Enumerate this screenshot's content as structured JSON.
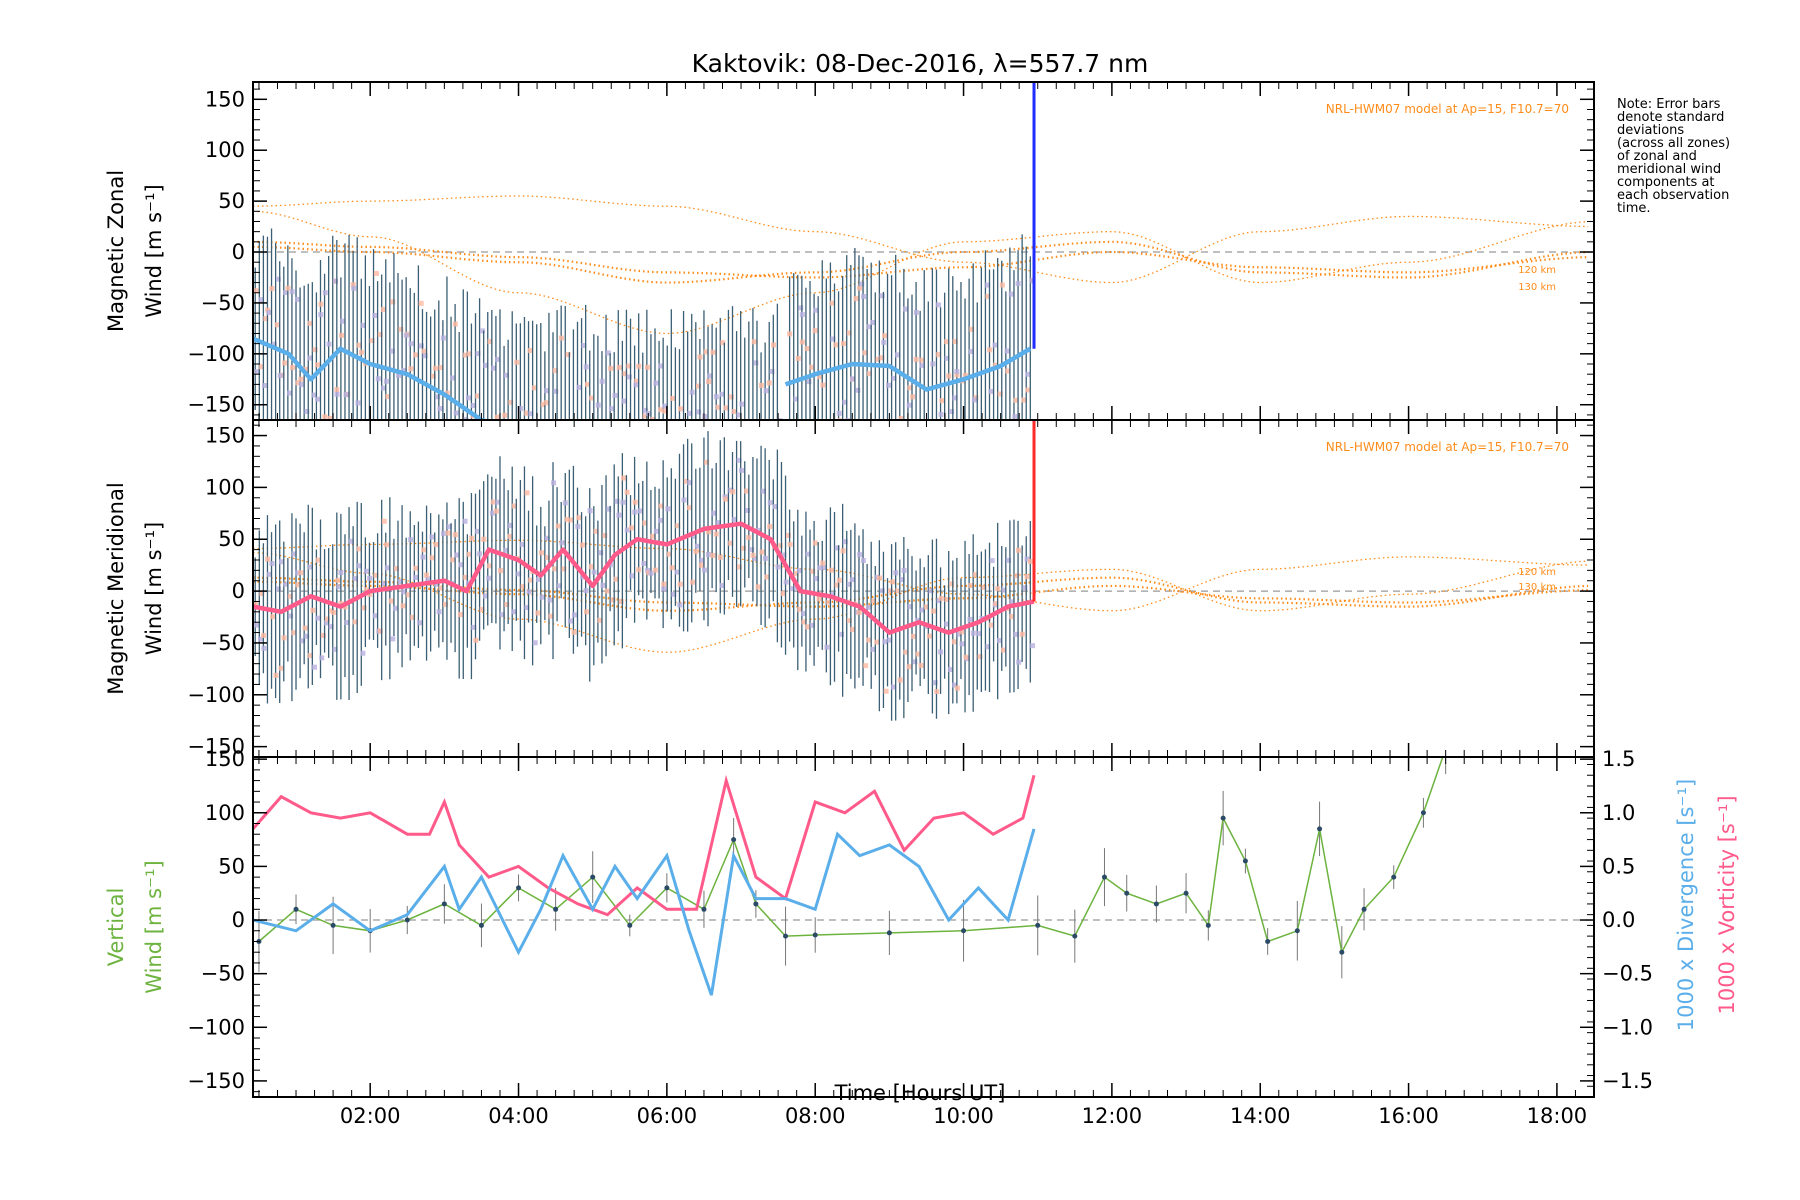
{
  "chart_data": {
    "title": "Kaktovik: 08-Dec-2016, λ=557.7 nm",
    "type": "line",
    "xlabel": "Time [Hours UT]",
    "xlim_hours": [
      0.42,
      18.5
    ],
    "x_ticks": [
      "02:00",
      "04:00",
      "06:00",
      "08:00",
      "10:00",
      "12:00",
      "14:00",
      "16:00",
      "18:00"
    ],
    "x_tick_hours": [
      2,
      4,
      6,
      8,
      10,
      12,
      14,
      16,
      18
    ],
    "y_tick_values": [
      150,
      100,
      50,
      0,
      -50,
      -100,
      -150
    ],
    "y_tick_labels": [
      "150",
      "100",
      "50",
      "0",
      "−50",
      "−100",
      "−150"
    ],
    "note": [
      "Note: Error bars",
      "denote standard",
      "deviations",
      "(across all zones)",
      "of zonal and",
      "meridional wind",
      "components at",
      "each observation",
      "time."
    ],
    "colors": {
      "model": "#ff8c1a",
      "zonal": "#1f2dff",
      "zonal_light": "#5aaeea",
      "meridional": "#ff2a2a",
      "meridional_light": "#ff5a8a",
      "vertical": "#6db33f",
      "divergence": "#5aaeea",
      "vorticity": "#ff5a8a",
      "error_bar": "#3b5f74"
    },
    "panels": [
      {
        "id": "zonal",
        "ylabel": [
          "Magnetic Zonal",
          "Wind [m s⁻¹]"
        ],
        "ylim": [
          -165,
          167
        ],
        "model_label": "NRL-HWM07 model at Ap=15, F10.7=70",
        "km_labels": [
          "120 km",
          "130 km"
        ],
        "series": [
          {
            "x": [
              0.42,
              0.9,
              1.2,
              1.6,
              2.0,
              2.5,
              3.0,
              3.5,
              4.0,
              4.4
            ],
            "y": [
              -85,
              -100,
              -125,
              -95,
              -110,
              -120,
              -140,
              -165,
              -175,
              -170
            ]
          },
          {
            "x": [
              7.6,
              8.0,
              8.5,
              9.0,
              9.5,
              10.0,
              10.5,
              10.9
            ],
            "y": [
              -130,
              -120,
              -110,
              -112,
              -135,
              -125,
              -112,
              -95
            ]
          }
        ]
      },
      {
        "id": "meridional",
        "ylabel": [
          "Magnetic Meridional",
          "Wind [m s⁻¹]"
        ],
        "ylim": [
          -160,
          165
        ],
        "model_label": "NRL-HWM07 model at Ap=15, F10.7=70",
        "km_labels": [
          "120 km",
          "130 km"
        ],
        "series": [
          {
            "x": [
              0.42,
              0.8,
              1.2,
              1.6,
              2.0,
              2.5,
              3.0,
              3.3,
              3.6,
              4.0,
              4.3,
              4.6,
              5.0,
              5.3,
              5.6,
              6.0,
              6.5,
              7.0,
              7.4,
              7.8,
              8.2,
              8.6,
              9.0,
              9.4,
              9.8,
              10.2,
              10.6,
              10.95
            ],
            "y": [
              -15,
              -20,
              -5,
              -15,
              0,
              5,
              10,
              0,
              40,
              30,
              15,
              40,
              5,
              35,
              50,
              45,
              60,
              65,
              50,
              0,
              -5,
              -15,
              -40,
              -30,
              -40,
              -30,
              -15,
              -10
            ]
          }
        ]
      },
      {
        "id": "vertical",
        "ylabel": [
          "Vertical",
          "Wind [m s⁻¹]"
        ],
        "ylim": [
          -165,
          152
        ],
        "right_ylim": [
          -1.65,
          1.52
        ],
        "right_ticks": [
          1.5,
          1.0,
          0.5,
          0.0,
          -0.5,
          -1.0,
          -1.5
        ],
        "right_tick_labels": [
          "1.5",
          "1.0",
          "0.5",
          "0.0",
          "−0.5",
          "−1.0",
          "−1.5"
        ],
        "right_ylabel_divergence": "1000 x Divergence [s⁻¹]",
        "right_ylabel_vorticity": "1000 x Vorticity [s⁻¹]",
        "vertical_wind": {
          "x": [
            0.5,
            1.0,
            1.5,
            2.0,
            2.5,
            3.0,
            3.5,
            4.0,
            4.5,
            5.0,
            5.5,
            6.0,
            6.5,
            6.9,
            7.2,
            7.6,
            8.0,
            9.0,
            10.0,
            11.0,
            11.5,
            11.9,
            12.2,
            12.6,
            13.0,
            13.3,
            13.5,
            13.8,
            14.1,
            14.5,
            14.8,
            15.1,
            15.4,
            15.8,
            16.2,
            16.5
          ],
          "y": [
            -20,
            10,
            -5,
            -10,
            0,
            15,
            -5,
            30,
            10,
            40,
            -5,
            30,
            10,
            75,
            15,
            -15,
            -14,
            -12,
            -10,
            -5,
            -15,
            40,
            25,
            15,
            25,
            -5,
            95,
            55,
            -20,
            -10,
            85,
            -30,
            10,
            40,
            100,
            160
          ]
        },
        "divergence": {
          "x": [
            0.42,
            1.0,
            1.5,
            2.0,
            2.5,
            3.0,
            3.2,
            3.5,
            4.0,
            4.3,
            4.6,
            5.0,
            5.3,
            5.6,
            6.0,
            6.3,
            6.6,
            6.9,
            7.2,
            7.6,
            8.0,
            8.3,
            8.6,
            9.0,
            9.4,
            9.8,
            10.2,
            10.6,
            10.95
          ],
          "y": [
            0.0,
            -0.1,
            0.15,
            -0.1,
            0.05,
            0.5,
            0.1,
            0.4,
            -0.3,
            0.1,
            0.6,
            0.1,
            0.5,
            0.2,
            0.6,
            -0.1,
            -0.7,
            0.6,
            0.2,
            0.2,
            0.1,
            0.8,
            0.6,
            0.7,
            0.5,
            0.0,
            0.3,
            0.0,
            0.85
          ]
        },
        "vorticity": {
          "x": [
            0.42,
            0.8,
            1.2,
            1.6,
            2.0,
            2.5,
            2.8,
            3.0,
            3.2,
            3.6,
            4.0,
            4.4,
            4.8,
            5.2,
            5.6,
            6.0,
            6.4,
            6.8,
            7.2,
            7.6,
            8.0,
            8.4,
            8.8,
            9.2,
            9.6,
            10.0,
            10.4,
            10.8,
            10.95
          ],
          "y": [
            0.85,
            1.15,
            1.0,
            0.95,
            1.0,
            0.8,
            0.8,
            1.1,
            0.7,
            0.4,
            0.5,
            0.3,
            0.15,
            0.05,
            0.3,
            0.1,
            0.1,
            1.3,
            0.4,
            0.2,
            1.1,
            1.0,
            1.2,
            0.65,
            0.95,
            1.0,
            0.8,
            0.95,
            1.35
          ]
        }
      }
    ],
    "model_curves": [
      {
        "x": [
          0.42,
          2,
          4,
          6,
          8,
          10,
          12,
          14,
          16,
          18.5
        ],
        "y": [
          10,
          5,
          -5,
          -20,
          -25,
          -15,
          0,
          -15,
          -20,
          -5
        ]
      },
      {
        "x": [
          0.42,
          2,
          4,
          6,
          8,
          10,
          12,
          14,
          16,
          18.5
        ],
        "y": [
          5,
          0,
          -10,
          -30,
          -20,
          0,
          10,
          -20,
          -25,
          0
        ]
      },
      {
        "x": [
          0.42,
          2,
          4,
          6,
          8,
          10,
          12,
          14,
          16,
          18.5
        ],
        "y": [
          45,
          50,
          55,
          45,
          20,
          -10,
          -30,
          20,
          35,
          25
        ]
      },
      {
        "x": [
          0.42,
          2,
          4,
          6,
          8,
          10,
          12,
          14,
          16,
          18.5
        ],
        "y": [
          40,
          15,
          -40,
          -80,
          -40,
          10,
          20,
          -30,
          -10,
          30
        ]
      }
    ]
  }
}
